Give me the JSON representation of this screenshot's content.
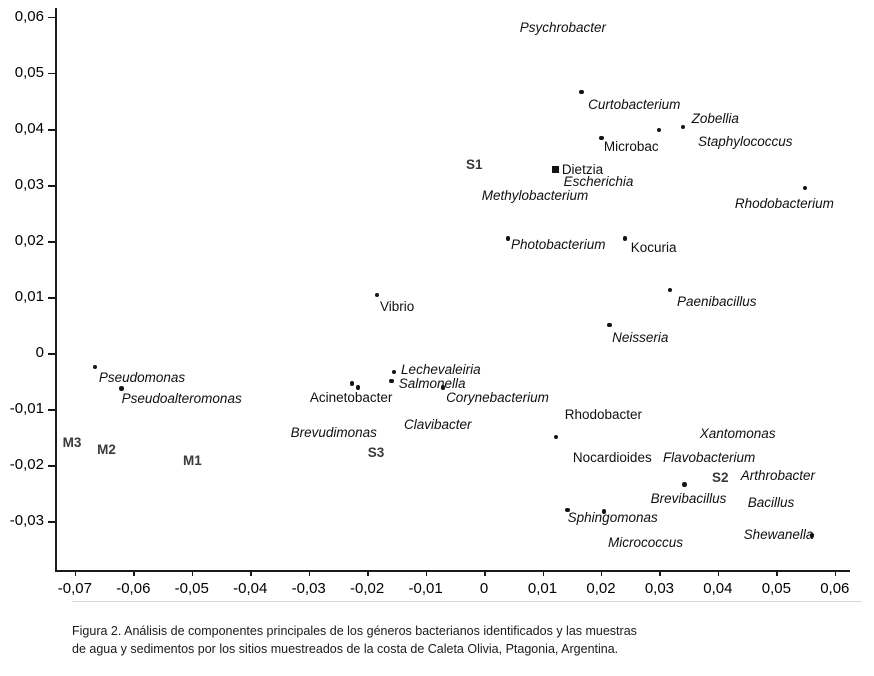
{
  "chart_data": {
    "type": "scatter",
    "title": "",
    "xlabel": "",
    "ylabel": "",
    "xlim": [
      -0.0734,
      0.0626
    ],
    "ylim": [
      -0.0387,
      0.0616
    ],
    "grid": false,
    "x_ticks": [
      {
        "v": -0.07,
        "label": "-0,07"
      },
      {
        "v": -0.06,
        "label": "-0,06"
      },
      {
        "v": -0.05,
        "label": "-0,05"
      },
      {
        "v": -0.04,
        "label": "-0,04"
      },
      {
        "v": -0.03,
        "label": "-0,03"
      },
      {
        "v": -0.02,
        "label": "-0,02"
      },
      {
        "v": -0.01,
        "label": "-0,01"
      },
      {
        "v": 0,
        "label": "0"
      },
      {
        "v": 0.01,
        "label": "0,01"
      },
      {
        "v": 0.02,
        "label": "0,02"
      },
      {
        "v": 0.03,
        "label": "0,03"
      },
      {
        "v": 0.04,
        "label": "0,04"
      },
      {
        "v": 0.05,
        "label": "0,05"
      },
      {
        "v": 0.06,
        "label": "0,06"
      }
    ],
    "y_ticks": [
      {
        "v": 0.06,
        "label": "0,06"
      },
      {
        "v": 0.05,
        "label": "0,05"
      },
      {
        "v": 0.04,
        "label": "0,04"
      },
      {
        "v": 0.03,
        "label": "0,03"
      },
      {
        "v": 0.02,
        "label": "0,02"
      },
      {
        "v": 0.01,
        "label": "0,01"
      },
      {
        "v": 0,
        "label": "0"
      },
      {
        "v": -0.01,
        "label": "-0,01"
      },
      {
        "v": -0.02,
        "label": "-0,02"
      },
      {
        "v": -0.03,
        "label": "-0,03"
      }
    ],
    "points": [
      {
        "label": "Psychrobacter",
        "style": "italic",
        "lx": 0.0061,
        "ly": 0.058
      },
      {
        "label": "Curtobacterium",
        "style": "italic",
        "lx": 0.0178,
        "ly": 0.0443,
        "mx": 0.0167,
        "my": 0.0466
      },
      {
        "label": "Zobellia",
        "style": "italic",
        "lx": 0.0355,
        "ly": 0.0418,
        "mx": 0.034,
        "my": 0.0404
      },
      {
        "label": "Staphylococcus",
        "style": "italic",
        "lx": 0.0366,
        "ly": 0.0377,
        "mx": 0.0299,
        "my": 0.0398
      },
      {
        "label": "Microbac",
        "style": "plain",
        "lx": 0.0205,
        "ly": 0.0368,
        "mx": 0.0201,
        "my": 0.0384
      },
      {
        "label": "Dietzia",
        "style": "plain",
        "lx": 0.0133,
        "ly": 0.0327,
        "mx": 0.0123,
        "my": 0.0327,
        "shape": "square"
      },
      {
        "label": "Escherichia",
        "style": "italic",
        "lx": 0.0136,
        "ly": 0.0305
      },
      {
        "label": "S1",
        "style": "bold",
        "lx": -0.0031,
        "ly": 0.0336
      },
      {
        "label": "Methylobacterium",
        "style": "italic",
        "lx": -0.0004,
        "ly": 0.028
      },
      {
        "label": "Rhodobacterium",
        "style": "italic",
        "lx": 0.0429,
        "ly": 0.0266,
        "mx": 0.0549,
        "my": 0.0295
      },
      {
        "label": "Photobacterium",
        "style": "italic",
        "lx": 0.0046,
        "ly": 0.0193,
        "mx": 0.0041,
        "my": 0.0205
      },
      {
        "label": "Kocuria",
        "style": "plain",
        "lx": 0.0251,
        "ly": 0.0188,
        "mx": 0.0241,
        "my": 0.0205
      },
      {
        "label": "Vibrio",
        "style": "plain",
        "lx": -0.0178,
        "ly": 0.0082,
        "mx": -0.0183,
        "my": 0.0104
      },
      {
        "label": "Paenibacillus",
        "style": "italic",
        "lx": 0.033,
        "ly": 0.0091,
        "mx": 0.0318,
        "my": 0.0113
      },
      {
        "label": "Neisseria",
        "style": "italic",
        "lx": 0.0219,
        "ly": 0.0027,
        "mx": 0.0215,
        "my": 0.005
      },
      {
        "label": "Pseudomonas",
        "style": "italic",
        "lx": -0.0659,
        "ly": -0.0045,
        "mx": -0.0666,
        "my": -0.0025
      },
      {
        "label": "Pseudoalteromonas",
        "style": "italic",
        "lx": -0.062,
        "ly": -0.0082,
        "mx": -0.062,
        "my": -0.0063
      },
      {
        "label": "Lechevaleiria",
        "style": "italic",
        "lx": -0.0142,
        "ly": -0.003,
        "mx": -0.0154,
        "my": -0.0034
      },
      {
        "label": "Salmonella",
        "style": "italic",
        "lx": -0.0146,
        "ly": -0.0055,
        "mx": -0.0158,
        "my": -0.005
      },
      {
        "label": "Acinetobacter",
        "style": "plain",
        "lx": -0.0298,
        "ly": -0.008,
        "mx": -0.0226,
        "my": -0.0054
      },
      {
        "label": "",
        "style": "plain",
        "mx": -0.0216,
        "my": -0.0061
      },
      {
        "label": "Corynebacterium",
        "style": "italic",
        "lx": -0.0065,
        "ly": -0.008,
        "mx": -0.007,
        "my": -0.0061
      },
      {
        "label": "Brevudimonas",
        "style": "italic",
        "lx": -0.0331,
        "ly": -0.0143
      },
      {
        "label": "Clavibacter",
        "style": "italic",
        "lx": -0.0137,
        "ly": -0.0129
      },
      {
        "label": "S3",
        "style": "bold",
        "lx": -0.0199,
        "ly": -0.0179
      },
      {
        "label": "Rhodobacter",
        "style": "plain",
        "lx": 0.0138,
        "ly": -0.0111
      },
      {
        "label": "Nocardioides",
        "style": "plain",
        "lx": 0.0152,
        "ly": -0.0188,
        "mx": 0.0123,
        "my": -0.015
      },
      {
        "label": "Xantomonas",
        "style": "italic",
        "lx": 0.0369,
        "ly": -0.0145
      },
      {
        "label": "Flavobacterium",
        "style": "italic",
        "lx": 0.0306,
        "ly": -0.0188
      },
      {
        "label": "S2",
        "style": "bold",
        "lx": 0.039,
        "ly": -0.0223
      },
      {
        "label": "Arthrobacter",
        "style": "italic",
        "lx": 0.0439,
        "ly": -0.022
      },
      {
        "label": "Brevibacillus",
        "style": "italic",
        "lx": 0.0285,
        "ly": -0.0261,
        "mx": 0.0343,
        "my": -0.0234
      },
      {
        "label": "Bacillus",
        "style": "italic",
        "lx": 0.0451,
        "ly": -0.0268
      },
      {
        "label": "Sphingomonas",
        "style": "italic",
        "lx": 0.0143,
        "ly": -0.0295,
        "mx": 0.0143,
        "my": -0.028
      },
      {
        "label": "Micrococcus",
        "style": "italic",
        "lx": 0.0212,
        "ly": -0.0339,
        "mx": 0.0205,
        "my": -0.0283
      },
      {
        "label": "Shewanella",
        "style": "italic",
        "lx": 0.0444,
        "ly": -0.0325,
        "mx": 0.0561,
        "my": -0.0325
      },
      {
        "label": "M3",
        "style": "bold",
        "lx": -0.0721,
        "ly": -0.0161
      },
      {
        "label": "M2",
        "style": "bold",
        "lx": -0.0662,
        "ly": -0.0173
      },
      {
        "label": "M1",
        "style": "bold",
        "lx": -0.0515,
        "ly": -0.0193
      }
    ]
  },
  "caption": {
    "line1": "Figura 2. Análisis de componentes principales de los géneros bacterianos identificados y las muestras",
    "line2": "de agua y sedimentos por los sitios muestreados de la costa de Caleta Olivia, Ptagonia, Argentina."
  }
}
